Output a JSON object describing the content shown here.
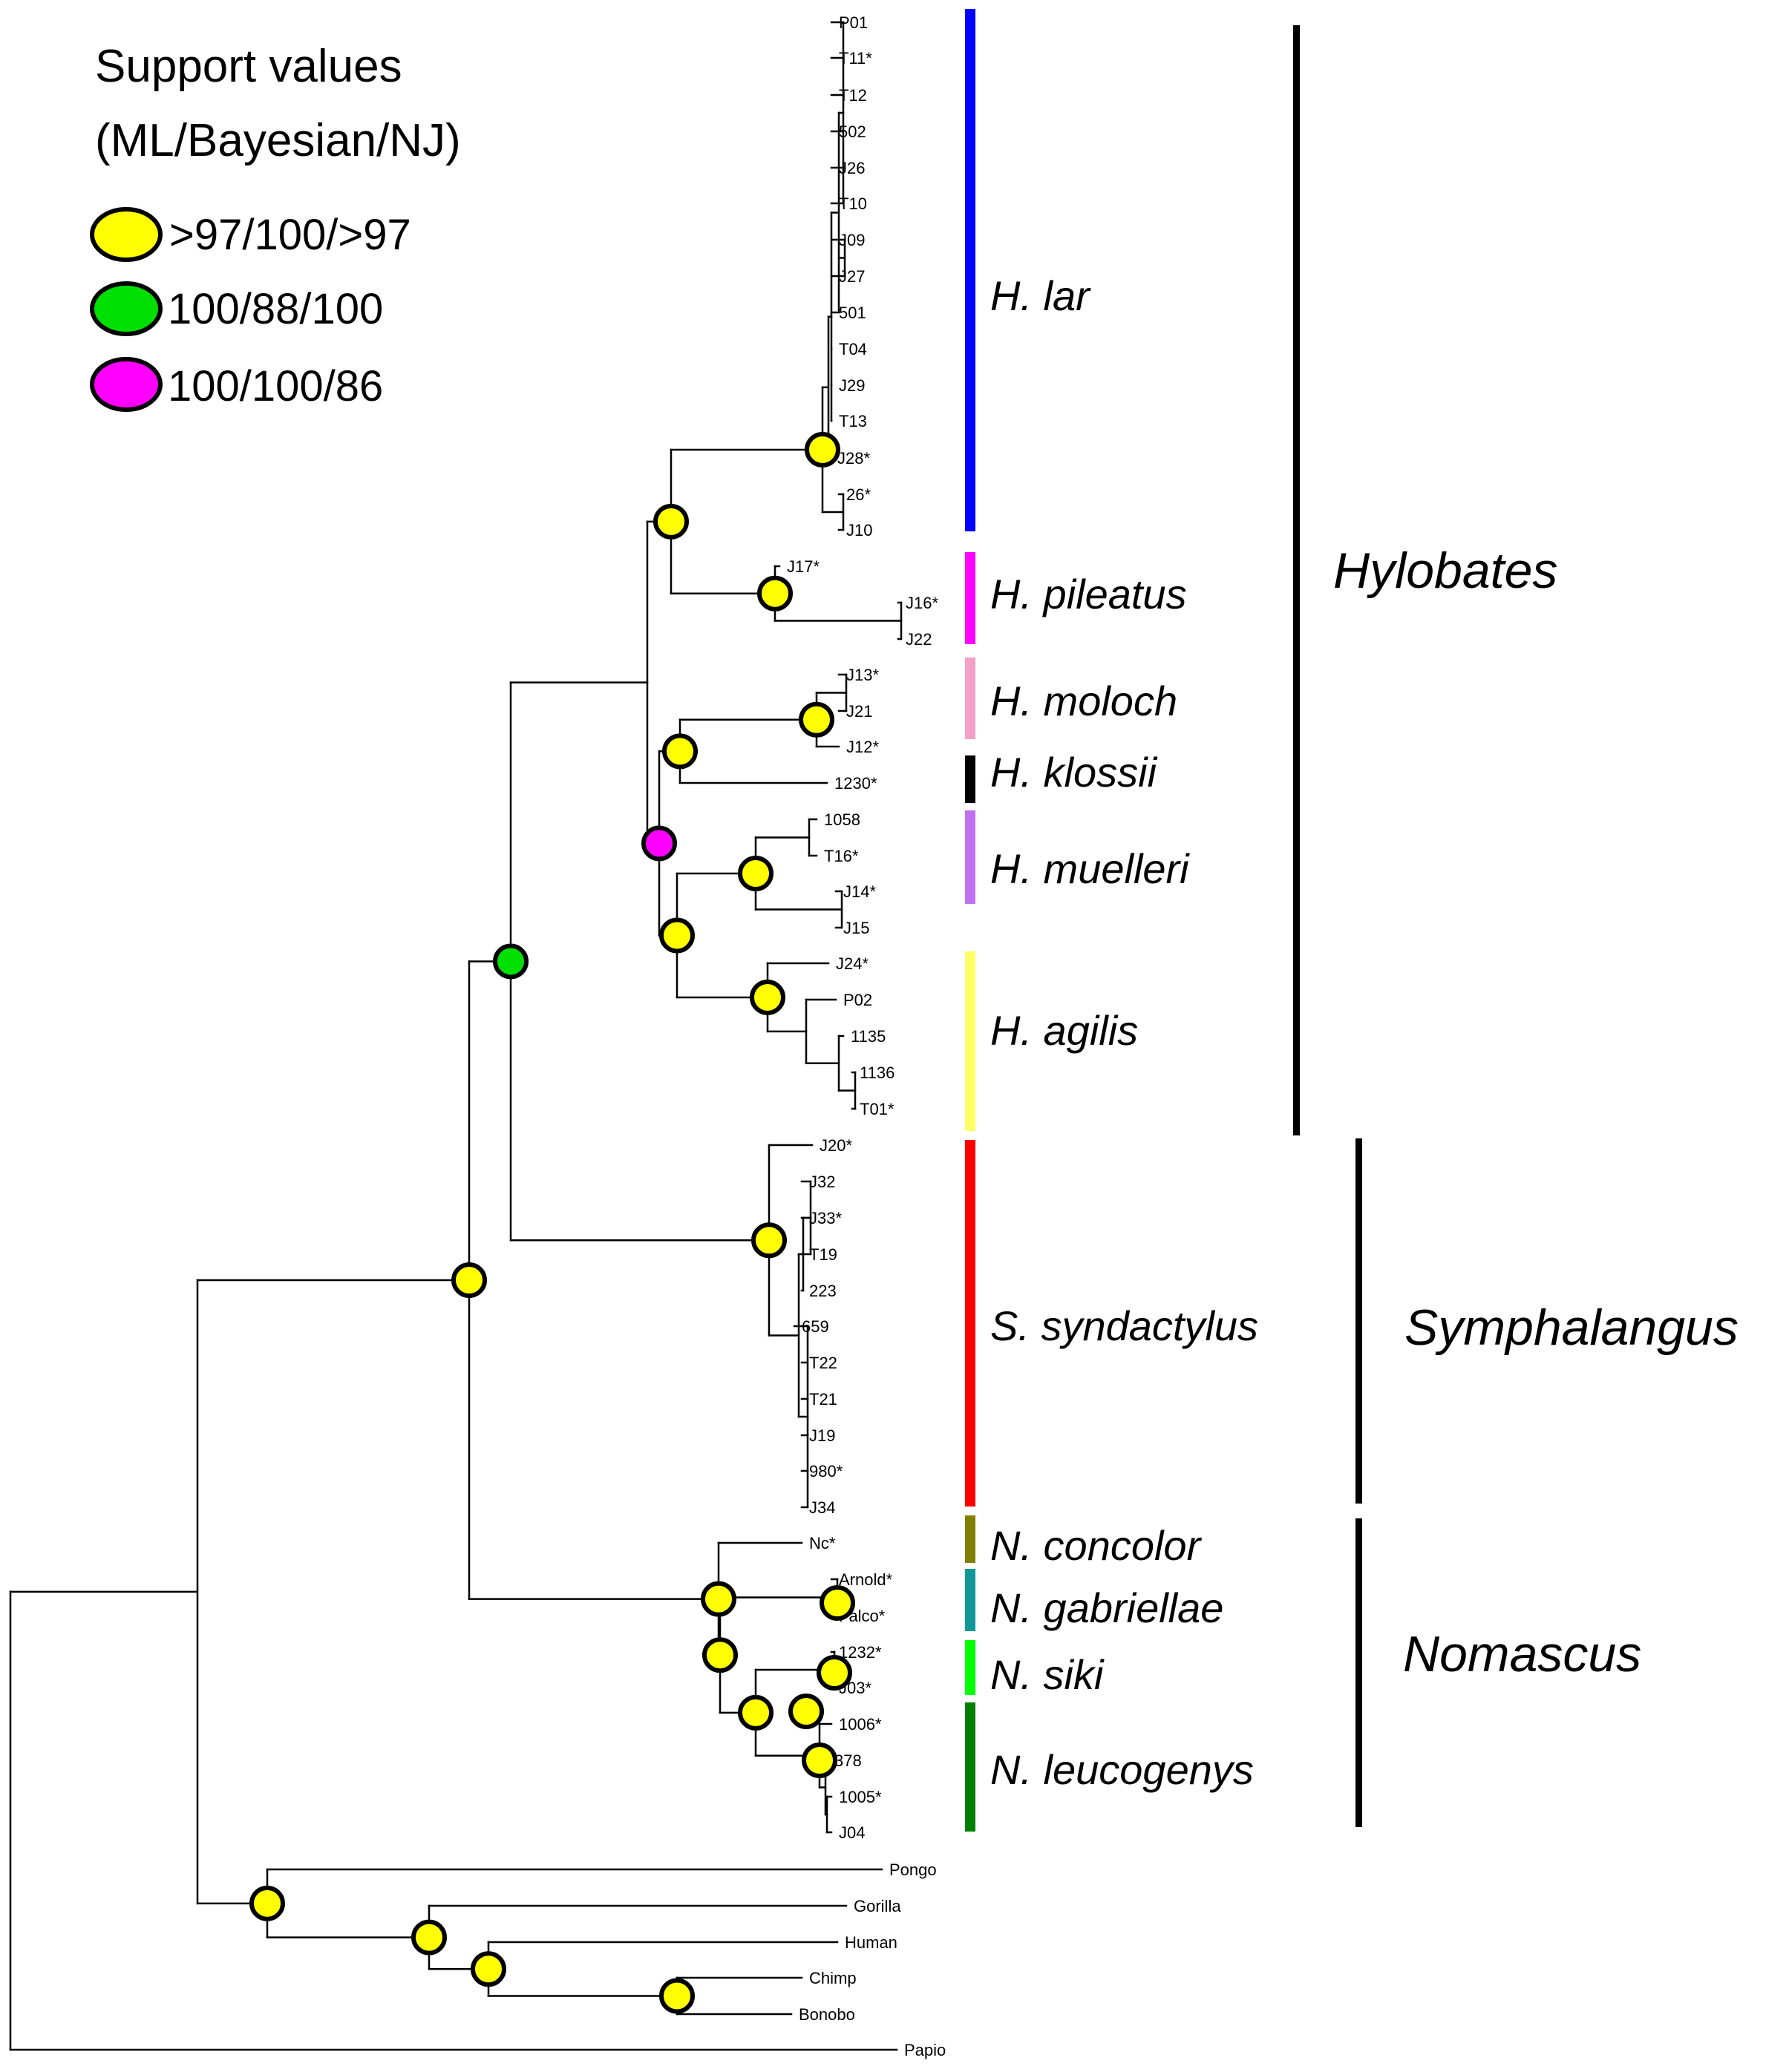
{
  "legend": {
    "title_line1": "Support values",
    "title_line2": "(ML/Bayesian/NJ)",
    "items": [
      {
        "label": ">97/100/>97",
        "color": "#ffff00"
      },
      {
        "label": "100/88/100",
        "color": "#00e000"
      },
      {
        "label": "100/100/86",
        "color": "#ff00ff"
      }
    ]
  },
  "leaves": [
    "P01",
    "T11*",
    "T12",
    "502",
    "J26",
    "T10",
    "J09",
    "J27",
    "501",
    "T04",
    "J29",
    "T13",
    "J28*",
    "26*",
    "J10",
    "J17*",
    "J16*",
    "J22",
    "J13*",
    "J21",
    "J12*",
    "1230*",
    "1058",
    "T16*",
    "J14*",
    "J15",
    "J24*",
    "P02",
    "1135",
    "1136",
    "T01*",
    "J20*",
    "J32",
    "J33*",
    "T19",
    "223",
    "659",
    "T22",
    "T21",
    "J19",
    "980*",
    "J34",
    "Nc*",
    "Arnold*",
    "Falco*",
    "1232*",
    "J03*",
    "1006*",
    "378",
    "1005*",
    "J04",
    "Pongo",
    "Gorilla",
    "Human",
    "Chimp",
    "Bonobo",
    "Papio"
  ],
  "species": [
    {
      "name": "H. lar",
      "color": "#0000ff"
    },
    {
      "name": "H. pileatus",
      "color": "#ff00ff"
    },
    {
      "name": "H. moloch",
      "color": "#f4a0c8"
    },
    {
      "name": "H. klossii",
      "color": "#000000"
    },
    {
      "name": "H. muelleri",
      "color": "#c070f0"
    },
    {
      "name": "H. agilis",
      "color": "#ffff66"
    },
    {
      "name": "S. syndactylus",
      "color": "#ff0000"
    },
    {
      "name": "N. concolor",
      "color": "#808000"
    },
    {
      "name": "N. gabriellae",
      "color": "#109898"
    },
    {
      "name": "N. siki",
      "color": "#00ff00"
    },
    {
      "name": "N. leucogenys",
      "color": "#008000"
    }
  ],
  "genera": [
    "Hylobates",
    "Symphalangus",
    "Nomascus"
  ]
}
